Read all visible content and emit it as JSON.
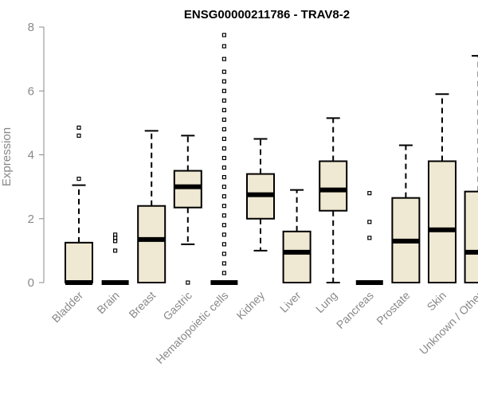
{
  "chart_data": {
    "type": "boxplot",
    "title": "ENSG00000211786 - TRAV8-2",
    "xlabel": "",
    "ylabel": "Expression",
    "ylim": [
      0,
      8
    ],
    "yticks": [
      0,
      2,
      4,
      6,
      8
    ],
    "box_fill": "#efe8d2",
    "categories": [
      "Bladder",
      "Brain",
      "Breast",
      "Gastric",
      "Hematopoietic cells",
      "Kidney",
      "Liver",
      "Lung",
      "Pancreas",
      "Prostate",
      "Skin",
      "Unknown / Other"
    ],
    "boxes": [
      {
        "category": "Bladder",
        "whisker_low": 0,
        "q1": 0,
        "median": 0,
        "q3": 1.25,
        "whisker_high": 3.05,
        "outliers": [
          3.25,
          4.6,
          4.85
        ]
      },
      {
        "category": "Brain",
        "whisker_low": 0,
        "q1": 0,
        "median": 0,
        "q3": 0,
        "whisker_high": 0,
        "outliers": [
          1.0,
          1.3,
          1.4,
          1.5
        ]
      },
      {
        "category": "Breast",
        "whisker_low": 0,
        "q1": 0,
        "median": 1.35,
        "q3": 2.4,
        "whisker_high": 4.75,
        "outliers": []
      },
      {
        "category": "Gastric",
        "whisker_low": 1.2,
        "q1": 2.35,
        "median": 3.0,
        "q3": 3.5,
        "whisker_high": 4.6,
        "outliers": [
          0
        ]
      },
      {
        "category": "Hematopoietic cells",
        "whisker_low": 0,
        "q1": 0,
        "median": 0,
        "q3": 0,
        "whisker_high": 0,
        "outliers": [
          0.3,
          0.6,
          0.9,
          1.2,
          1.5,
          1.8,
          2.1,
          2.4,
          2.7,
          3.0,
          3.3,
          3.6,
          3.9,
          4.2,
          4.5,
          4.8,
          5.1,
          5.4,
          5.7,
          6.0,
          6.3,
          6.6,
          7.0,
          7.4,
          7.75
        ]
      },
      {
        "category": "Kidney",
        "whisker_low": 1.0,
        "q1": 2.0,
        "median": 2.75,
        "q3": 3.4,
        "whisker_high": 4.5,
        "outliers": []
      },
      {
        "category": "Liver",
        "whisker_low": 0,
        "q1": 0,
        "median": 0.95,
        "q3": 1.6,
        "whisker_high": 2.9,
        "outliers": []
      },
      {
        "category": "Lung",
        "whisker_low": 0,
        "q1": 2.25,
        "median": 2.9,
        "q3": 3.8,
        "whisker_high": 5.15,
        "outliers": []
      },
      {
        "category": "Pancreas",
        "whisker_low": 0,
        "q1": 0,
        "median": 0,
        "q3": 0,
        "whisker_high": 0,
        "outliers": [
          1.4,
          1.9,
          2.8
        ]
      },
      {
        "category": "Prostate",
        "whisker_low": 0,
        "q1": 0,
        "median": 1.3,
        "q3": 2.65,
        "whisker_high": 4.3,
        "outliers": []
      },
      {
        "category": "Skin",
        "whisker_low": 0,
        "q1": 0,
        "median": 1.65,
        "q3": 3.8,
        "whisker_high": 5.9,
        "outliers": []
      },
      {
        "category": "Unknown / Other",
        "whisker_low": 0,
        "q1": 0,
        "median": 0.95,
        "q3": 2.85,
        "whisker_high": 7.1,
        "outliers": []
      }
    ]
  }
}
